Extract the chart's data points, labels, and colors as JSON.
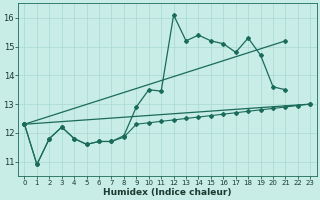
{
  "xlabel": "Humidex (Indice chaleur)",
  "bg_color": "#c8ece6",
  "grid_color": "#a8d8d0",
  "line_color": "#1a6b5a",
  "xlim": [
    -0.5,
    23.5
  ],
  "ylim": [
    10.5,
    16.5
  ],
  "yticks": [
    11,
    12,
    13,
    14,
    15,
    16
  ],
  "xticks": [
    0,
    1,
    2,
    3,
    4,
    5,
    6,
    7,
    8,
    9,
    10,
    11,
    12,
    13,
    14,
    15,
    16,
    17,
    18,
    19,
    20,
    21,
    22,
    23
  ],
  "series": {
    "line_spiky": {
      "x": [
        0,
        1,
        2,
        3,
        4,
        5,
        6,
        7,
        8,
        9,
        10,
        11,
        12,
        13,
        14,
        15,
        16,
        17,
        18,
        19,
        20,
        21
      ],
      "y": [
        12.3,
        10.9,
        11.8,
        12.2,
        11.8,
        11.6,
        11.7,
        11.7,
        11.9,
        12.9,
        13.5,
        13.45,
        16.1,
        15.2,
        15.4,
        15.2,
        15.1,
        14.8,
        15.3,
        14.7,
        13.6,
        13.5
      ]
    },
    "line_diag_high": {
      "x": [
        0,
        21
      ],
      "y": [
        12.3,
        15.2
      ]
    },
    "line_diag_mid": {
      "x": [
        0,
        23
      ],
      "y": [
        12.3,
        13.0
      ]
    },
    "line_flat_bottom": {
      "x": [
        0,
        1,
        2,
        3,
        4,
        5,
        6,
        7,
        8,
        9,
        10,
        11,
        12,
        13,
        14,
        15,
        16,
        17,
        18,
        19,
        20,
        21,
        22,
        23
      ],
      "y": [
        12.3,
        10.9,
        11.8,
        12.2,
        11.8,
        11.6,
        11.7,
        11.7,
        11.85,
        12.3,
        12.35,
        12.4,
        12.45,
        12.5,
        12.55,
        12.6,
        12.65,
        12.7,
        12.75,
        12.8,
        12.85,
        12.9,
        12.95,
        13.0
      ]
    }
  },
  "marker_line": {
    "x": [
      0,
      1,
      2,
      3,
      4,
      5,
      6,
      7,
      8,
      9,
      10,
      11,
      12,
      13,
      14,
      15,
      16,
      17,
      18,
      19,
      20,
      21,
      22,
      23
    ],
    "y": [
      12.3,
      10.9,
      11.8,
      12.2,
      11.8,
      11.6,
      11.7,
      11.7,
      11.85,
      12.3,
      12.35,
      12.4,
      12.45,
      12.5,
      12.55,
      12.6,
      12.65,
      12.7,
      12.75,
      12.8,
      12.85,
      12.9,
      12.95,
      13.0
    ]
  }
}
